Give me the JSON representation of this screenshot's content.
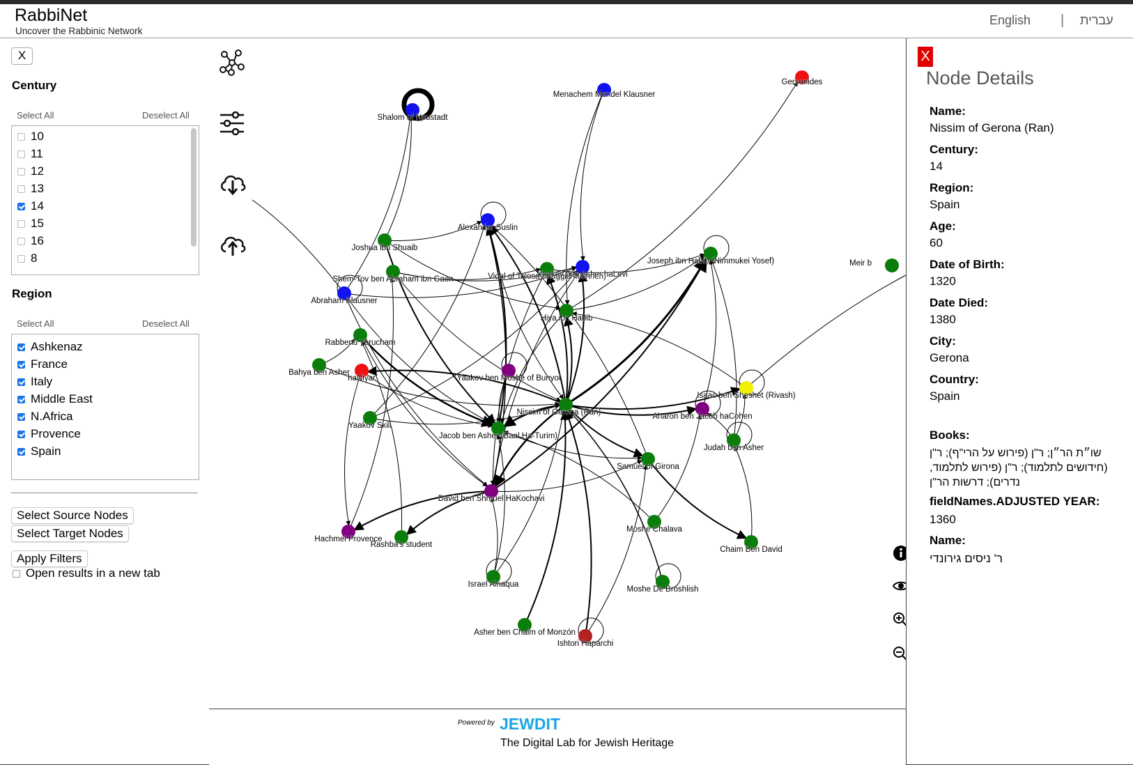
{
  "app": {
    "title": "RabbiNet",
    "subtitle": "Uncover the Rabbinic Network"
  },
  "languages": {
    "english": "English",
    "separator": "|",
    "hebrew": "עברית"
  },
  "filters": {
    "close_label": "X",
    "century": {
      "title": "Century",
      "select_all": "Select All",
      "deselect_all": "Deselect All",
      "options": [
        {
          "label": "10",
          "checked": false
        },
        {
          "label": "11",
          "checked": false
        },
        {
          "label": "12",
          "checked": false
        },
        {
          "label": "13",
          "checked": false
        },
        {
          "label": "14",
          "checked": true
        },
        {
          "label": "15",
          "checked": false
        },
        {
          "label": "16",
          "checked": false
        },
        {
          "label": "8",
          "checked": false
        }
      ]
    },
    "region": {
      "title": "Region",
      "select_all": "Select All",
      "deselect_all": "Deselect All",
      "options": [
        {
          "label": "Ashkenaz",
          "checked": true
        },
        {
          "label": "France",
          "checked": true
        },
        {
          "label": "Italy",
          "checked": true
        },
        {
          "label": "Middle East",
          "checked": true
        },
        {
          "label": "N.Africa",
          "checked": true
        },
        {
          "label": "Provence",
          "checked": true
        },
        {
          "label": "Spain",
          "checked": true
        }
      ]
    },
    "select_source": "Select Source Nodes",
    "select_target": "Select Target Nodes",
    "apply": "Apply Filters",
    "open_new_tab": "Open results in a new tab"
  },
  "graph": {
    "toolbar": [
      "network-icon",
      "sliders-icon",
      "cloud-download-icon",
      "cloud-upload-icon"
    ],
    "side_tools": [
      "info-icon",
      "eye-icon",
      "zoom-in-icon",
      "zoom-out-icon"
    ],
    "node_colors": {
      "green": "#0a7d0a",
      "blue": "#1212ee",
      "red": "#ee1111",
      "purple": "#800080",
      "yellow": "#f0f000",
      "darkred": "#b22222"
    },
    "nodes": [
      {
        "id": "shalom",
        "label": "Shalom of Neustadt",
        "color": "blue"
      },
      {
        "id": "menachem",
        "label": "Menachem Mendel Klausner",
        "color": "blue"
      },
      {
        "id": "gersonides",
        "label": "Gersonides",
        "color": "red"
      },
      {
        "id": "alexander",
        "label": "Alexander Suslin",
        "color": "blue"
      },
      {
        "id": "joshua",
        "label": "Joshua ibn Shuaib",
        "color": "green"
      },
      {
        "id": "shemtov",
        "label": "Shem-Tov ben Abraham ibn Gaon",
        "color": "green"
      },
      {
        "id": "vidal",
        "label": "Vidal of Tolosa (Maggid Mishneh)",
        "color": "green"
      },
      {
        "id": "yaakovhalevi",
        "label": "Yaakov ben Asher haLevi",
        "color": "blue"
      },
      {
        "id": "josephhabib",
        "label": "Joseph ibn Habib (Nimmukei Yosef)",
        "color": "green"
      },
      {
        "id": "meir",
        "label": "Meir b",
        "color": "green"
      },
      {
        "id": "abraham",
        "label": "Abraham Klausner",
        "color": "blue"
      },
      {
        "id": "hiya",
        "label": "Hiya ibn Habib",
        "color": "green"
      },
      {
        "id": "yerucham",
        "label": "Rabbenu Yerucham",
        "color": "green"
      },
      {
        "id": "bahya",
        "label": "Bahya ben Asher",
        "color": "green"
      },
      {
        "id": "haniyar",
        "label": "haNiyar",
        "color": "red"
      },
      {
        "id": "yaakovbunyol",
        "label": "Yaakov ben Moshe of Bunyol",
        "color": "purple"
      },
      {
        "id": "rivash",
        "label": "Isaac ben Sheshet (Rivash)",
        "color": "yellow"
      },
      {
        "id": "nissim",
        "label": "Nissim of Gerona (Ran)",
        "color": "green"
      },
      {
        "id": "aharon",
        "label": "Aharon ben Jacob haCohen",
        "color": "purple"
      },
      {
        "id": "yaakovskili",
        "label": "Yaakov Skili",
        "color": "green"
      },
      {
        "id": "jacobasher",
        "label": "Jacob ben Asher (Baal Ha-Turim)",
        "color": "green"
      },
      {
        "id": "judah",
        "label": "Judah ben Asher",
        "color": "green"
      },
      {
        "id": "samuel",
        "label": "Samuel of Girona",
        "color": "green"
      },
      {
        "id": "david",
        "label": "David ben Shmuel HaKochavi",
        "color": "purple"
      },
      {
        "id": "moshechalava",
        "label": "Moshe Chalava",
        "color": "green"
      },
      {
        "id": "hachmei",
        "label": "Hachmei Provence",
        "color": "purple"
      },
      {
        "id": "rashba",
        "label": "Rashba's student",
        "color": "green"
      },
      {
        "id": "chaim",
        "label": "Chaim Ben David",
        "color": "green"
      },
      {
        "id": "israel",
        "label": "Israel Alnaqua",
        "color": "green"
      },
      {
        "id": "moshebroshlish",
        "label": "Moshe De Broshlish",
        "color": "green"
      },
      {
        "id": "asher",
        "label": "Asher ben Chaim of Monzón",
        "color": "green"
      },
      {
        "id": "ishtori",
        "label": "Ishtori Haparchi",
        "color": "darkred"
      }
    ]
  },
  "footer": {
    "powered_by": "Powered by",
    "brand": "JEWDIT",
    "tagline": "The Digital Lab for Jewish Heritage"
  },
  "details": {
    "close_label": "X",
    "title": "Node Details",
    "fields": [
      {
        "label": "Name:",
        "value": "Nissim of Gerona (Ran)"
      },
      {
        "label": "Century:",
        "value": "14"
      },
      {
        "label": "Region:",
        "value": "Spain"
      },
      {
        "label": "Age:",
        "value": "60"
      },
      {
        "label": "Date of Birth:",
        "value": "1320"
      },
      {
        "label": "Date Died:",
        "value": "1380"
      },
      {
        "label": "City:",
        "value": "Gerona"
      },
      {
        "label": "Country:",
        "value": "Spain"
      }
    ],
    "books_label": "Books:",
    "books_value": "שו״ת הר״ן; ר\"ן (פירוש על הרי\"ף); ר\"ן (חידושים לתלמוד); ר\"ן (פירוש לתלמוד, נדרים); דרשות הר\"ן",
    "adjusted_label": "fieldNames.ADJUSTED YEAR:",
    "adjusted_value": "1360",
    "hebrew_name_label": "Name:",
    "hebrew_name_value": "ר' ניסים גירונדי"
  }
}
